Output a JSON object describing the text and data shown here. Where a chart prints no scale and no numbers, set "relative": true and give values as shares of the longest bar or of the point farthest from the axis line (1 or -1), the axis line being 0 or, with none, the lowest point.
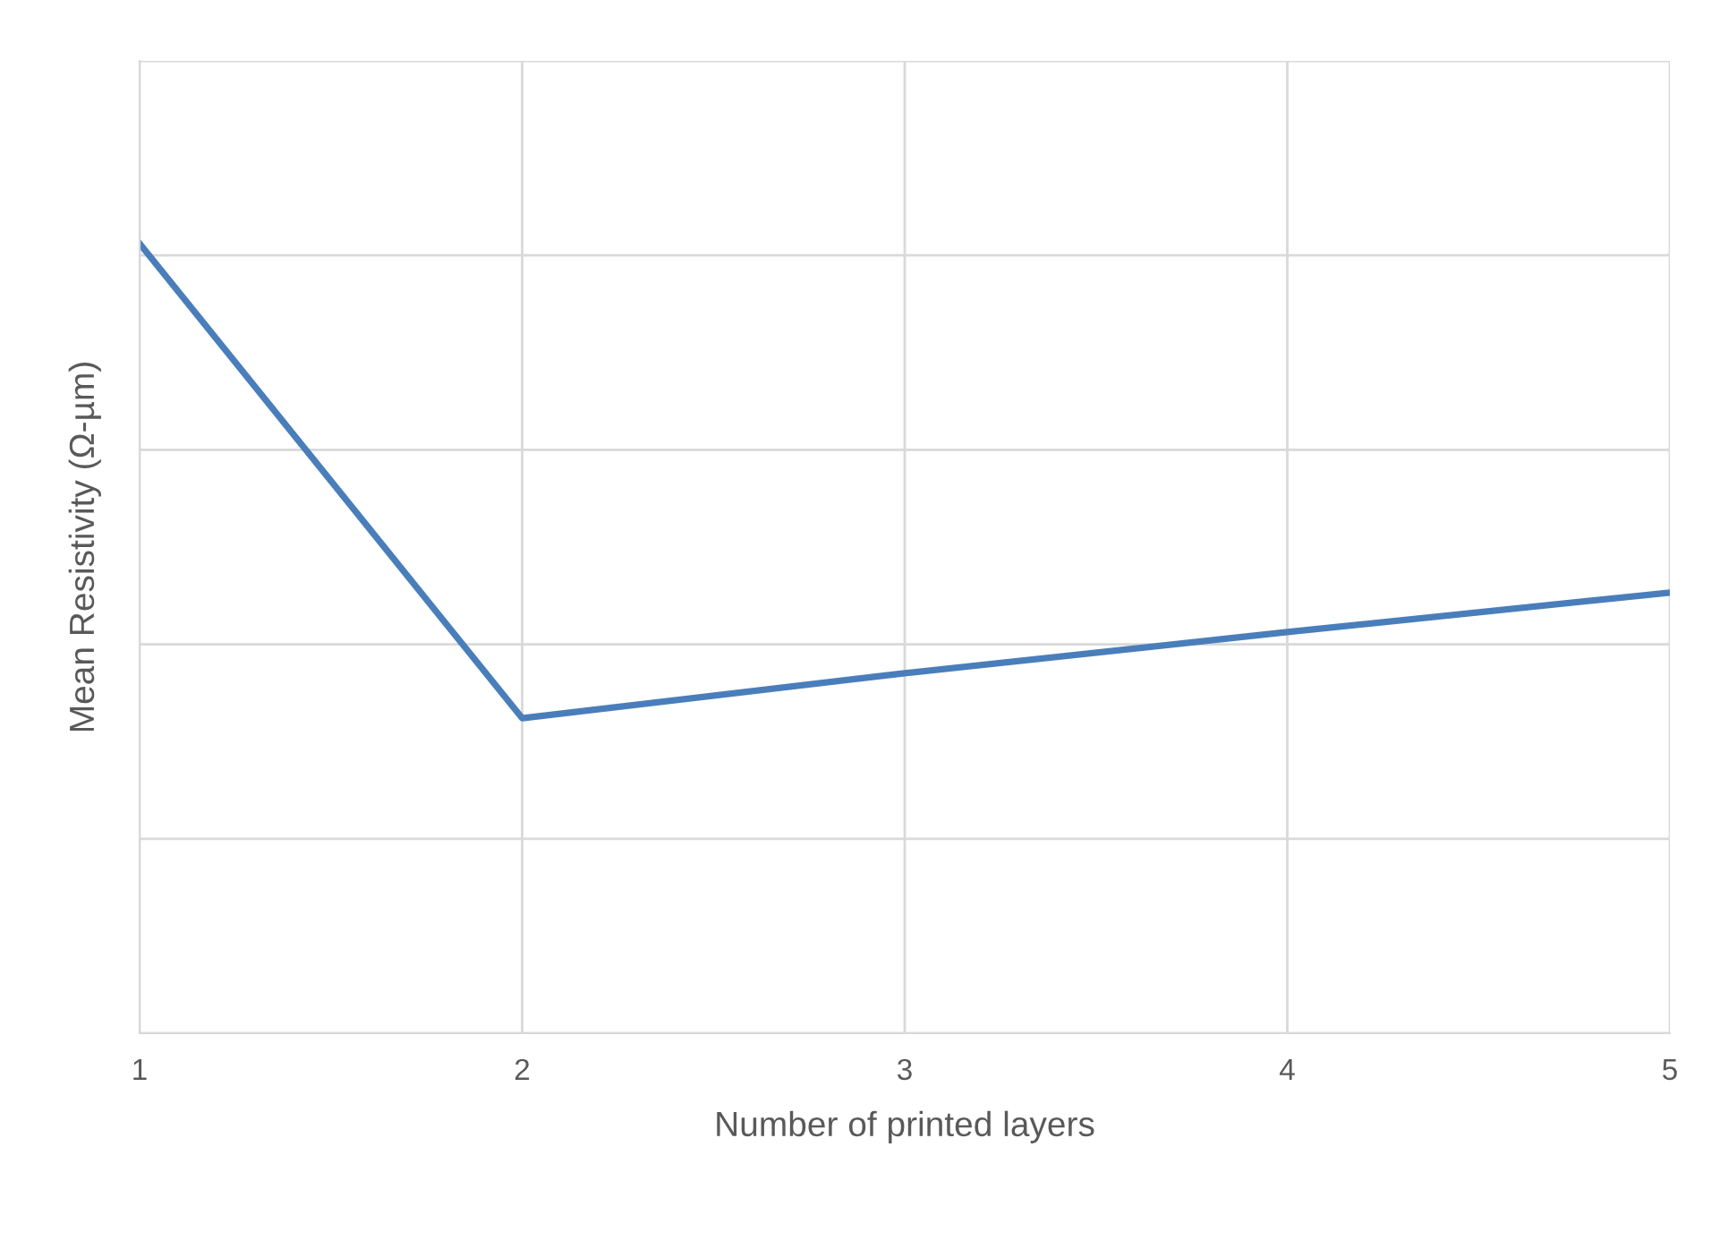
{
  "chart_data": {
    "type": "line",
    "xlabel": "Number of printed layers",
    "ylabel": "Mean Resistivity (Ω-µm)",
    "x": [
      1,
      2,
      3,
      4,
      5
    ],
    "series": [
      {
        "color": "#4a7ebb",
        "values": [
          1,
          0.399,
          0.456,
          0.508,
          0.558
        ]
      }
    ],
    "relative": true,
    "xlim": [
      1,
      5
    ],
    "xticks": [
      1,
      2,
      3,
      4,
      5
    ],
    "grid": true,
    "line_style": "solid",
    "marker": "none"
  }
}
